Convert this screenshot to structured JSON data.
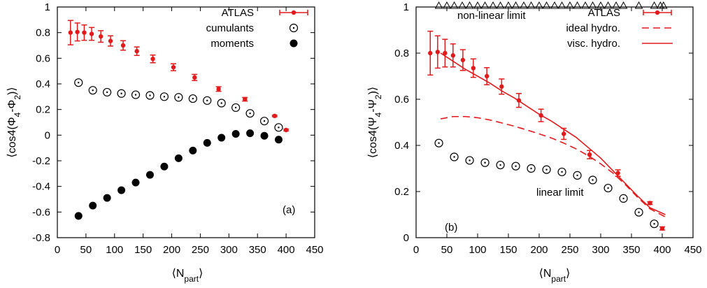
{
  "chart_data": [
    {
      "type": "scatter",
      "panel_label": "(a)",
      "xlabel": "⟨N_part⟩",
      "ylabel": "⟨cos4(Φ4-Φ2)⟩",
      "xlim": [
        0,
        450
      ],
      "ylim": [
        -0.8,
        1
      ],
      "xticks": [
        "0",
        "50",
        "100",
        "150",
        "200",
        "250",
        "300",
        "350",
        "400",
        "450"
      ],
      "yticks": [
        "-0.8",
        "-0.6",
        "-0.4",
        "-0.2",
        "0",
        "0.2",
        "0.4",
        "0.6",
        "0.8",
        "1"
      ],
      "legend_position": "top-right",
      "series": [
        {
          "name": "ATLAS",
          "style": "red-errorbars",
          "color": "#e31a1c",
          "x": [
            23,
            35,
            47,
            60,
            76,
            93,
            115,
            139,
            167,
            203,
            240,
            282,
            328,
            380,
            400
          ],
          "y": [
            0.8,
            0.805,
            0.8,
            0.79,
            0.77,
            0.735,
            0.7,
            0.655,
            0.595,
            0.53,
            0.45,
            0.36,
            0.28,
            0.15,
            0.04
          ],
          "err": [
            0.095,
            0.07,
            0.06,
            0.05,
            0.045,
            0.04,
            0.037,
            0.033,
            0.03,
            0.027,
            0.024,
            0.018,
            0.014,
            0.006,
            0.007
          ]
        },
        {
          "name": "cumulants",
          "style": "open-circle",
          "color": "#000000",
          "x": [
            37,
            62,
            87,
            112,
            137,
            162,
            187,
            212,
            237,
            262,
            287,
            312,
            337,
            362,
            387
          ],
          "y": [
            0.41,
            0.35,
            0.335,
            0.325,
            0.315,
            0.31,
            0.3,
            0.295,
            0.285,
            0.27,
            0.25,
            0.215,
            0.17,
            0.11,
            0.06
          ]
        },
        {
          "name": "moments",
          "style": "filled-circle",
          "color": "#000000",
          "x": [
            37,
            62,
            87,
            112,
            137,
            162,
            187,
            212,
            237,
            262,
            287,
            312,
            337,
            362,
            387
          ],
          "y": [
            -0.63,
            -0.55,
            -0.49,
            -0.43,
            -0.37,
            -0.31,
            -0.245,
            -0.18,
            -0.12,
            -0.06,
            -0.02,
            0.01,
            0.015,
            -0.005,
            -0.035
          ]
        }
      ]
    },
    {
      "type": "line",
      "panel_label": "(b)",
      "xlabel": "⟨N_part⟩",
      "ylabel": "⟨cos4(Ψ4-Ψ2)⟩",
      "xlim": [
        0,
        450
      ],
      "ylim": [
        0,
        1
      ],
      "xticks": [
        "0",
        "50",
        "100",
        "150",
        "200",
        "250",
        "300",
        "350",
        "400",
        "450"
      ],
      "yticks": [
        "0",
        "0.2",
        "0.4",
        "0.6",
        "0.8",
        "1"
      ],
      "legend_position": "top-right",
      "annotations": {
        "nonlinear": "non-linear limit",
        "linear": "linear limit"
      },
      "triangles_x": [
        37,
        50,
        62,
        75,
        87,
        100,
        112,
        125,
        137,
        150,
        162,
        175,
        187,
        200,
        212,
        225,
        237,
        250,
        262,
        275,
        287,
        300,
        312,
        325,
        337,
        362,
        387,
        397,
        402
      ],
      "triangles_y": 1.0,
      "series": [
        {
          "name": "ATLAS",
          "style": "red-errorbars",
          "color": "#e31a1c",
          "x": [
            23,
            35,
            47,
            60,
            76,
            93,
            115,
            139,
            167,
            203,
            240,
            282,
            328,
            380,
            400
          ],
          "y": [
            0.8,
            0.805,
            0.8,
            0.79,
            0.77,
            0.735,
            0.7,
            0.655,
            0.595,
            0.53,
            0.45,
            0.36,
            0.28,
            0.15,
            0.04
          ],
          "err": [
            0.095,
            0.07,
            0.06,
            0.05,
            0.045,
            0.04,
            0.037,
            0.033,
            0.03,
            0.027,
            0.024,
            0.018,
            0.014,
            0.006,
            0.007
          ]
        },
        {
          "name": "ideal hydro.",
          "style": "dashed-line",
          "color": "#e31a1c",
          "x": [
            40,
            60,
            80,
            100,
            120,
            140,
            160,
            180,
            200,
            220,
            240,
            260,
            280,
            300,
            320,
            340,
            360,
            380,
            405
          ],
          "y": [
            0.515,
            0.525,
            0.525,
            0.52,
            0.51,
            0.497,
            0.483,
            0.467,
            0.45,
            0.432,
            0.41,
            0.385,
            0.355,
            0.32,
            0.28,
            0.23,
            0.175,
            0.125,
            0.09
          ]
        },
        {
          "name": "visc. hydro.",
          "style": "solid-line",
          "color": "#e31a1c",
          "x": [
            40,
            60,
            80,
            100,
            120,
            140,
            160,
            180,
            200,
            220,
            240,
            260,
            280,
            300,
            320,
            340,
            360,
            380,
            405
          ],
          "y": [
            0.8,
            0.765,
            0.73,
            0.7,
            0.67,
            0.635,
            0.605,
            0.57,
            0.535,
            0.505,
            0.47,
            0.435,
            0.39,
            0.345,
            0.29,
            0.235,
            0.18,
            0.13,
            0.1
          ]
        },
        {
          "name": "",
          "style": "open-circle",
          "color": "#000000",
          "x": [
            37,
            62,
            87,
            112,
            137,
            162,
            187,
            212,
            237,
            262,
            287,
            312,
            337,
            362,
            387
          ],
          "y": [
            0.41,
            0.35,
            0.335,
            0.325,
            0.315,
            0.31,
            0.3,
            0.295,
            0.285,
            0.27,
            0.25,
            0.215,
            0.17,
            0.11,
            0.06
          ]
        }
      ]
    }
  ]
}
